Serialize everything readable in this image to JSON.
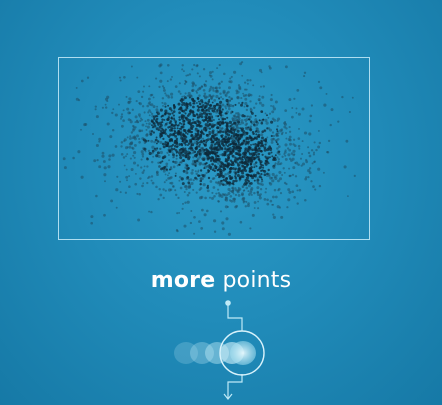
{
  "caption": {
    "emphasis": "more",
    "rest": " points"
  },
  "colors": {
    "background": "#218cba",
    "frame": "#c8ecfa",
    "point_dark": "#0e2a3a",
    "point_mid": "#1d4f66",
    "indicator": "#bfeaf7"
  },
  "diagram": {
    "clusters": 2,
    "indicator_steps": 5
  }
}
